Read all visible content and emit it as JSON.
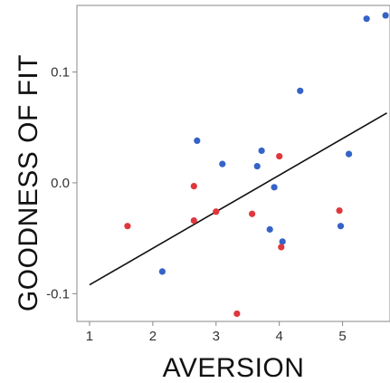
{
  "chart_data": {
    "type": "scatter",
    "xlabel": "AVERSION",
    "ylabel": "GOODNESS OF FIT",
    "xlim": [
      0.8,
      5.75
    ],
    "ylim": [
      -0.125,
      0.16
    ],
    "x_ticks": [
      1,
      2,
      3,
      4,
      5
    ],
    "y_ticks": [
      -0.1,
      0.0,
      0.1
    ],
    "x_tick_labels": [
      "1",
      "2",
      "3",
      "4",
      "5"
    ],
    "y_tick_labels": [
      "-0.1",
      "0.0",
      "0.1"
    ],
    "grid": false,
    "legend": "none",
    "series": [
      {
        "color": "#3563c7",
        "points": [
          {
            "x": 2.15,
            "y": -0.08
          },
          {
            "x": 2.7,
            "y": 0.038
          },
          {
            "x": 3.1,
            "y": 0.017
          },
          {
            "x": 3.65,
            "y": 0.015
          },
          {
            "x": 3.72,
            "y": 0.029
          },
          {
            "x": 3.85,
            "y": -0.042
          },
          {
            "x": 3.92,
            "y": -0.004
          },
          {
            "x": 4.05,
            "y": -0.053
          },
          {
            "x": 4.33,
            "y": 0.083
          },
          {
            "x": 4.97,
            "y": -0.039
          },
          {
            "x": 5.1,
            "y": 0.026
          },
          {
            "x": 5.38,
            "y": 0.148
          },
          {
            "x": 5.68,
            "y": 0.151
          }
        ]
      },
      {
        "color": "#e0373c",
        "points": [
          {
            "x": 1.6,
            "y": -0.039
          },
          {
            "x": 2.65,
            "y": -0.003
          },
          {
            "x": 2.65,
            "y": -0.034
          },
          {
            "x": 3.0,
            "y": -0.026
          },
          {
            "x": 3.33,
            "y": -0.118
          },
          {
            "x": 3.57,
            "y": -0.028
          },
          {
            "x": 4.0,
            "y": 0.024
          },
          {
            "x": 4.03,
            "y": -0.058
          },
          {
            "x": 4.95,
            "y": -0.025
          }
        ]
      }
    ],
    "fit_line": {
      "color": "#111111",
      "points": [
        {
          "x": 1.0,
          "y": -0.092
        },
        {
          "x": 5.7,
          "y": 0.063
        }
      ]
    }
  }
}
